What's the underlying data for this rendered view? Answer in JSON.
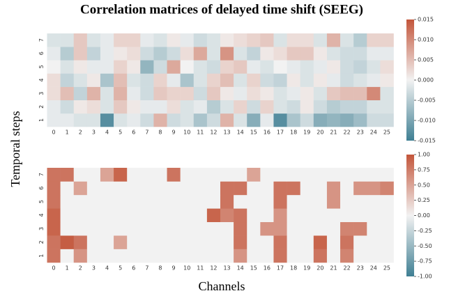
{
  "title": "Correlation matrices of delayed time shift (SEEG)",
  "xlabel": "Channels",
  "ylabel": "Temporal steps",
  "chart_data": [
    {
      "type": "heatmap",
      "x": [
        "0",
        "1",
        "2",
        "3",
        "4",
        "5",
        "6",
        "7",
        "8",
        "9",
        "10",
        "11",
        "12",
        "13",
        "14",
        "15",
        "16",
        "17",
        "18",
        "19",
        "20",
        "21",
        "22",
        "23",
        "24",
        "25"
      ],
      "y": [
        "1",
        "2",
        "3",
        "4",
        "5",
        "6",
        "7"
      ],
      "colors": [
        "#3f7f93",
        "#f2f2f2",
        "#c3553a"
      ],
      "zlim": [
        -0.015,
        0.015
      ],
      "zticks": [
        0.015,
        {
          "value": 0.01,
          "label": "0.010"
        },
        0.005,
        {
          "value": 0,
          "label": "0.000"
        },
        -0.005,
        {
          "value": -0.01,
          "label": "-0.010"
        },
        -0.015
      ],
      "values": [
        [
          -0.001,
          -0.001,
          -0.002,
          -0.002,
          -0.013,
          -0.002,
          -0.001,
          -0.003,
          0.006,
          -0.003,
          -0.002,
          -0.006,
          -0.003,
          0.006,
          -0.002,
          -0.009,
          -0.001,
          -0.013,
          -0.006,
          -0.003,
          -0.009,
          -0.008,
          -0.009,
          -0.007,
          -0.003,
          -0.003
        ],
        [
          -0.001,
          -0.003,
          0.001,
          0.002,
          -0.002,
          0.004,
          0.001,
          -0.001,
          -0.001,
          0.002,
          -0.002,
          -0.001,
          -0.005,
          -0.002,
          0.003,
          -0.003,
          0.003,
          -0.002,
          -0.003,
          0.001,
          -0.003,
          -0.005,
          -0.004,
          -0.004,
          -0.002,
          -0.002
        ],
        [
          0.002,
          0.005,
          -0.004,
          0.006,
          -0.002,
          0.006,
          -0.001,
          -0.003,
          0.004,
          0.003,
          0.003,
          -0.003,
          0.004,
          0.001,
          -0.001,
          0.002,
          0.001,
          -0.002,
          -0.001,
          0.001,
          -0.002,
          0.004,
          0.005,
          0.005,
          0.01,
          -0.002
        ],
        [
          0.002,
          -0.004,
          -0.002,
          0.001,
          -0.006,
          0.005,
          -0.002,
          -0.003,
          0.003,
          -0.001,
          -0.006,
          -0.002,
          0.003,
          0.005,
          -0.002,
          0.003,
          -0.003,
          -0.004,
          0.001,
          -0.002,
          0.001,
          -0.001,
          -0.003,
          -0.002,
          -0.001,
          0.001
        ],
        [
          0,
          -0.002,
          0.001,
          -0.001,
          -0.001,
          0.003,
          0.001,
          -0.008,
          -0.003,
          0.007,
          0,
          -0.002,
          -0.003,
          0.003,
          0.004,
          -0.001,
          -0.002,
          0,
          -0.001,
          -0.002,
          -0.001,
          0.001,
          -0.003,
          -0.004,
          -0.002,
          0.002
        ],
        [
          -0.001,
          -0.005,
          0.004,
          -0.004,
          -0.001,
          0.001,
          0.002,
          -0.003,
          -0.005,
          -0.003,
          0.002,
          0.007,
          -0.002,
          0.009,
          -0.002,
          -0.004,
          0.001,
          0.002,
          0.004,
          0.004,
          0.001,
          -0.002,
          -0.003,
          -0.003,
          -0.001,
          -0.001
        ],
        [
          -0.002,
          -0.002,
          0.004,
          -0.002,
          -0.001,
          0.003,
          0.003,
          -0.001,
          -0.002,
          0.001,
          -0.001,
          -0.003,
          -0.002,
          0.001,
          0.002,
          0.003,
          0.004,
          -0.002,
          0.002,
          0.002,
          -0.002,
          0.006,
          -0.002,
          -0.005,
          0.003,
          0.003
        ]
      ]
    },
    {
      "type": "heatmap",
      "x": [
        "0",
        "1",
        "2",
        "3",
        "4",
        "5",
        "6",
        "7",
        "8",
        "9",
        "10",
        "11",
        "12",
        "13",
        "14",
        "15",
        "16",
        "17",
        "18",
        "19",
        "20",
        "21",
        "22",
        "23",
        "24",
        "25"
      ],
      "y": [
        "1",
        "2",
        "3",
        "4",
        "5",
        "6",
        "7"
      ],
      "colors": [
        "#3f7f93",
        "#f2f2f2",
        "#c3553a"
      ],
      "zlim": [
        -1,
        1
      ],
      "zticks": [
        {
          "value": 1,
          "label": "1.00"
        },
        0.75,
        {
          "value": 0.5,
          "label": "0.50"
        },
        0.25,
        {
          "value": 0,
          "label": "0.00"
        },
        -0.25,
        {
          "value": -0.5,
          "label": "-0.50"
        },
        -0.75,
        {
          "value": -1,
          "label": "-1.00"
        }
      ],
      "values": [
        [
          0.8,
          0,
          0.6,
          0,
          0,
          0,
          0,
          0,
          0,
          0,
          0,
          0,
          0,
          0,
          0.6,
          0,
          0,
          0.8,
          0,
          0,
          0.8,
          0,
          0.7,
          0,
          0,
          0
        ],
        [
          0.8,
          0.95,
          0.8,
          0,
          0,
          0.5,
          0,
          0,
          0,
          0,
          0,
          0,
          0,
          0,
          0.8,
          0,
          0,
          0.8,
          0,
          0,
          0.9,
          0,
          0.8,
          0,
          0,
          0
        ],
        [
          0.9,
          0,
          0,
          0,
          0,
          0,
          0,
          0,
          0,
          0,
          0,
          0,
          0,
          0,
          0.8,
          0,
          0.6,
          0.6,
          0,
          0,
          0,
          0,
          0.7,
          0.7,
          0,
          0
        ],
        [
          0.9,
          0,
          0,
          0,
          0,
          0,
          0,
          0,
          0,
          0,
          0,
          0,
          0.9,
          0.7,
          0.8,
          0,
          0,
          0.6,
          0,
          0,
          0,
          0,
          0,
          0,
          0,
          0
        ],
        [
          0.8,
          0,
          0,
          0,
          0,
          0,
          0,
          0,
          0,
          0,
          0,
          0,
          0,
          0.8,
          0,
          0,
          0,
          0.8,
          0,
          0,
          0,
          0.6,
          0,
          0,
          0,
          0
        ],
        [
          0.8,
          0,
          0.5,
          0,
          0,
          0,
          0,
          0,
          0,
          0,
          0,
          0,
          0,
          0.8,
          0.8,
          0,
          0,
          0.8,
          0.8,
          0,
          0,
          0.6,
          0,
          0.6,
          0.6,
          0.7
        ],
        [
          0.8,
          0.8,
          0,
          0,
          0.5,
          0.9,
          0,
          0,
          0,
          0.8,
          0,
          0,
          0,
          0,
          0,
          0.5,
          0,
          0,
          0,
          0,
          0,
          0,
          0,
          0,
          0,
          0
        ]
      ]
    }
  ]
}
